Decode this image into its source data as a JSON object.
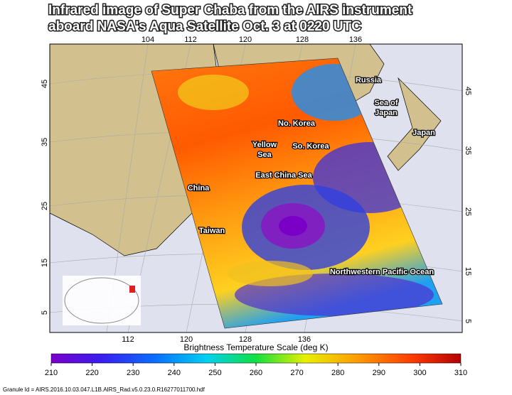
{
  "header": {
    "title_lines": [
      "Infrared image of Super Chaba from the AIRS instrument",
      "aboard NASA's Aqua  Satellite Oct. 3 at 0220 UTC"
    ]
  },
  "map": {
    "top_lon_labels": [
      104,
      112,
      120,
      128,
      136
    ],
    "bottom_lon_labels": [
      112,
      120,
      128,
      136
    ],
    "left_lat_labels": [
      45,
      35,
      25,
      15,
      5
    ],
    "right_lat_labels": [
      45,
      35,
      25,
      15,
      5
    ],
    "place_labels": [
      "Russia",
      "Sea of",
      "Japan",
      "Japan",
      "No. Korea",
      "Yellow",
      "Sea",
      "So. Korea",
      "East China Sea",
      "China",
      "Taiwan",
      "Northwestern Pacific Ocean"
    ]
  },
  "colorbar": {
    "title": "Brightness Temperature Scale (deg K)",
    "range": [
      210,
      310
    ],
    "ticks": [
      210,
      220,
      230,
      240,
      250,
      260,
      270,
      280,
      290,
      300,
      310
    ]
  },
  "footer": {
    "granule": "Granule Id = AIRS.2016.10.03.047.L1B.AIRS_Rad.v5.0.23.0.R16277011700.hdf"
  }
}
